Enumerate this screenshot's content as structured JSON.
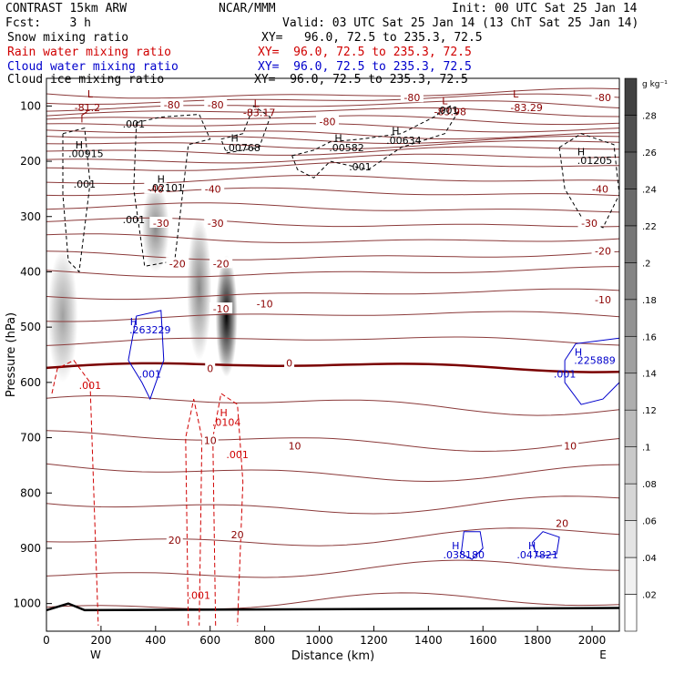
{
  "header": {
    "model": "CONTRAST 15km ARW",
    "fcst": "Fcst:    3 h",
    "center": "NCAR/MMM",
    "init": "Init: 00 UTC Sat 25 Jan 14",
    "valid": "Valid: 03 UTC Sat 25 Jan 14 (13 ChT Sat 25 Jan 14)"
  },
  "fields": [
    {
      "name": "Snow mixing ratio",
      "xy": "XY=   96.0, 72.5 to 235.3, 72.5",
      "color": "#000000"
    },
    {
      "name": "Rain water mixing ratio",
      "xy": "XY=  96.0, 72.5 to 235.3, 72.5",
      "color": "#d00000"
    },
    {
      "name": "Cloud water mixing ratio",
      "xy": "XY=  96.0, 72.5 to 235.3, 72.5",
      "color": "#0000cc"
    },
    {
      "name": "Cloud ice mixing ratio",
      "xy": "XY=  96.0, 72.5 to 235.3, 72.5",
      "color": "#000000"
    }
  ],
  "chart_data": {
    "type": "heatmap",
    "xlabel": "Distance (km)",
    "ylabel": "Pressure (hPa)",
    "xlim": [
      0,
      2100
    ],
    "ylim": [
      1050,
      50
    ],
    "xticks": [
      0,
      200,
      400,
      600,
      800,
      1000,
      1200,
      1400,
      1600,
      1800,
      2000
    ],
    "yticks": [
      100,
      200,
      300,
      400,
      500,
      600,
      700,
      800,
      900,
      1000
    ],
    "x_end_labels": {
      "left": "W",
      "right": "E"
    },
    "colorbar": {
      "unit": "g kg⁻¹",
      "ticks": [
        ".02",
        ".04",
        ".06",
        ".08",
        ".1",
        ".12",
        ".14",
        ".16",
        ".18",
        ".2",
        ".22",
        ".24",
        ".26",
        ".28"
      ],
      "range": [
        0,
        0.3
      ]
    },
    "snow_shading": [
      {
        "x": 60,
        "p": 480,
        "rx": 55,
        "rp": 120,
        "max": 0.08
      },
      {
        "x": 400,
        "p": 320,
        "rx": 50,
        "rp": 80,
        "max": 0.1
      },
      {
        "x": 560,
        "p": 430,
        "rx": 45,
        "rp": 130,
        "max": 0.1
      },
      {
        "x": 660,
        "p": 480,
        "rx": 40,
        "rp": 110,
        "max": 0.22
      }
    ],
    "temperature_contours": {
      "unit": "degC",
      "labels": [
        {
          "text": "-80",
          "x": 460,
          "p": 98
        },
        {
          "text": "-80",
          "x": 620,
          "p": 98
        },
        {
          "text": "-80",
          "x": 1030,
          "p": 128
        },
        {
          "text": "-80",
          "x": 1340,
          "p": 85
        },
        {
          "text": "-80",
          "x": 2040,
          "p": 85
        },
        {
          "text": "-40",
          "x": 610,
          "p": 250
        },
        {
          "text": "-40",
          "x": 2030,
          "p": 250
        },
        {
          "text": "-40",
          "x": 400,
          "p": 250
        },
        {
          "text": "-30",
          "x": 420,
          "p": 312
        },
        {
          "text": "-30",
          "x": 620,
          "p": 312
        },
        {
          "text": "-30",
          "x": 1990,
          "p": 312
        },
        {
          "text": "-20",
          "x": 480,
          "p": 385
        },
        {
          "text": "-20",
          "x": 640,
          "p": 385
        },
        {
          "text": "-20",
          "x": 2040,
          "p": 362
        },
        {
          "text": "-10",
          "x": 800,
          "p": 458
        },
        {
          "text": "-10",
          "x": 2040,
          "p": 450
        },
        {
          "text": "-10",
          "x": 640,
          "p": 467
        },
        {
          "text": "0",
          "x": 600,
          "p": 575
        },
        {
          "text": "0",
          "x": 890,
          "p": 565
        },
        {
          "text": "10",
          "x": 600,
          "p": 705
        },
        {
          "text": "10",
          "x": 910,
          "p": 715
        },
        {
          "text": "10",
          "x": 1920,
          "p": 715
        },
        {
          "text": "20",
          "x": 470,
          "p": 885
        },
        {
          "text": "20",
          "x": 700,
          "p": 875
        },
        {
          "text": "20",
          "x": 1890,
          "p": 855
        }
      ]
    },
    "annotations": [
      {
        "text": "L",
        "x": 160,
        "p": 78,
        "color": "#8b0000"
      },
      {
        "text": "-81.2",
        "x": 150,
        "p": 103,
        "color": "#8b0000"
      },
      {
        "text": "L",
        "x": 770,
        "p": 95,
        "color": "#8b0000"
      },
      {
        "text": "-83.17",
        "x": 780,
        "p": 112,
        "color": "#8b0000"
      },
      {
        "text": "L",
        "x": 1460,
        "p": 90,
        "color": "#8b0000"
      },
      {
        "text": "-83.98",
        "x": 1480,
        "p": 110,
        "color": "#8b0000"
      },
      {
        "text": "L",
        "x": 1720,
        "p": 78,
        "color": "#8b0000"
      },
      {
        "text": "-83.29",
        "x": 1760,
        "p": 103,
        "color": "#8b0000"
      },
      {
        "text": "H",
        "x": 120,
        "p": 170,
        "color": "#000000"
      },
      {
        "text": ".00915",
        "x": 145,
        "p": 186,
        "color": "#000000"
      },
      {
        "text": "H",
        "x": 690,
        "p": 158,
        "color": "#000000"
      },
      {
        "text": ".00768",
        "x": 720,
        "p": 175,
        "color": "#000000"
      },
      {
        "text": "H",
        "x": 1070,
        "p": 158,
        "color": "#000000"
      },
      {
        "text": ".00582",
        "x": 1100,
        "p": 175,
        "color": "#000000"
      },
      {
        "text": "H",
        "x": 1280,
        "p": 145,
        "color": "#000000"
      },
      {
        "text": ".00634",
        "x": 1310,
        "p": 162,
        "color": "#000000"
      },
      {
        "text": "H",
        "x": 1960,
        "p": 183,
        "color": "#000000"
      },
      {
        "text": ".01205",
        "x": 2010,
        "p": 198,
        "color": "#000000"
      },
      {
        "text": "H",
        "x": 420,
        "p": 232,
        "color": "#000000"
      },
      {
        "text": ".02101",
        "x": 440,
        "p": 248,
        "color": "#000000"
      },
      {
        "text": ".001",
        "x": 320,
        "p": 132,
        "color": "#000000"
      },
      {
        "text": ".001",
        "x": 140,
        "p": 241,
        "color": "#000000"
      },
      {
        "text": ".001",
        "x": 320,
        "p": 305,
        "color": "#000000"
      },
      {
        "text": ".001",
        "x": 1150,
        "p": 210,
        "color": "#000000"
      },
      {
        "text": ".001",
        "x": 1470,
        "p": 108,
        "color": "#000000"
      },
      {
        "text": "H",
        "x": 320,
        "p": 490,
        "color": "#0000cc"
      },
      {
        "text": ".263229",
        "x": 380,
        "p": 505,
        "color": "#0000cc"
      },
      {
        "text": ".001",
        "x": 380,
        "p": 585,
        "color": "#0000cc"
      },
      {
        "text": "H",
        "x": 1950,
        "p": 545,
        "color": "#0000cc"
      },
      {
        "text": ".225889",
        "x": 2010,
        "p": 560,
        "color": "#0000cc"
      },
      {
        "text": ".001",
        "x": 1900,
        "p": 585,
        "color": "#0000cc"
      },
      {
        "text": "H",
        "x": 1500,
        "p": 895,
        "color": "#0000cc"
      },
      {
        "text": ".038180",
        "x": 1530,
        "p": 912,
        "color": "#0000cc"
      },
      {
        "text": "H",
        "x": 1780,
        "p": 895,
        "color": "#0000cc"
      },
      {
        "text": ".047821",
        "x": 1800,
        "p": 912,
        "color": "#0000cc"
      },
      {
        "text": ".001",
        "x": 160,
        "p": 605,
        "color": "#d00000"
      },
      {
        "text": "H",
        "x": 650,
        "p": 655,
        "color": "#d00000"
      },
      {
        "text": ".0104",
        "x": 660,
        "p": 672,
        "color": "#d00000"
      },
      {
        "text": ".001",
        "x": 700,
        "p": 730,
        "color": "#d00000"
      },
      {
        "text": ".001",
        "x": 560,
        "p": 985,
        "color": "#d00000"
      }
    ]
  }
}
